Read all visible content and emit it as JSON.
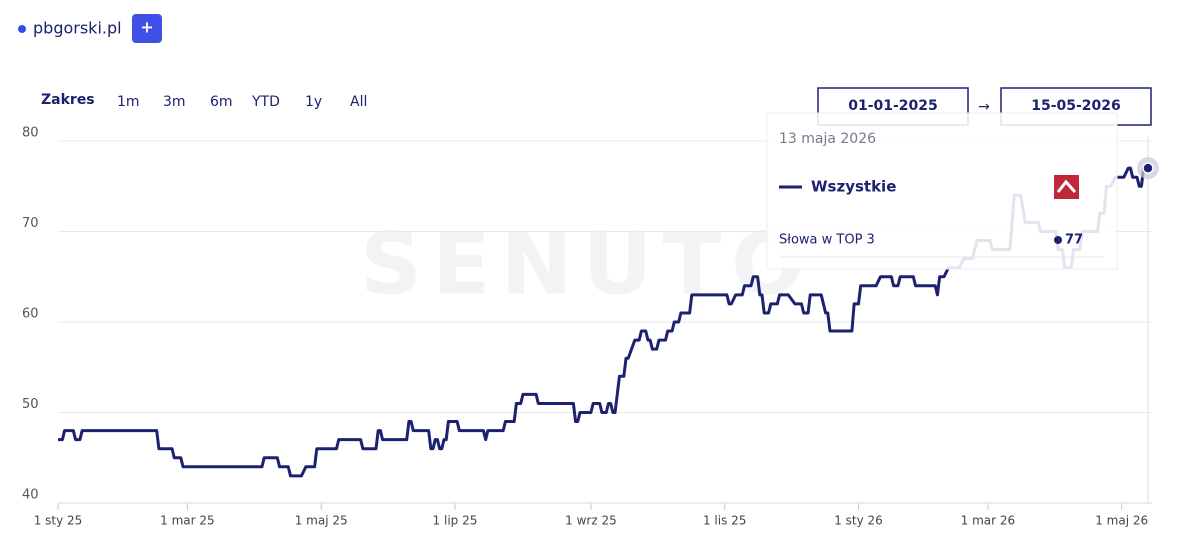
{
  "header": {
    "site": "pbgorski.pl",
    "add_button": "+"
  },
  "range": {
    "label": "Zakres",
    "options": [
      "1m",
      "3m",
      "6m",
      "YTD",
      "1y",
      "All"
    ]
  },
  "date_range": {
    "from": "01-01-2025",
    "separator": "→",
    "to": "15-05-2026"
  },
  "watermark": "SENUTO",
  "tooltip": {
    "date": "13 maja 2026",
    "group": "Wszystkie"
  },
  "chart_data": {
    "type": "line",
    "xlim": [
      "2025-01-01",
      "2026-05-13"
    ],
    "xticks": [
      {
        "value": "2025-01-01",
        "label": "1 sty 25"
      },
      {
        "value": "2025-03-01",
        "label": "1 mar 25"
      },
      {
        "value": "2025-05-01",
        "label": "1 maj 25"
      },
      {
        "value": "2025-07-01",
        "label": "1 lip 25"
      },
      {
        "value": "2025-09-01",
        "label": "1 wrz 25"
      },
      {
        "value": "2025-11-01",
        "label": "1 lis 25"
      },
      {
        "value": "2026-01-01",
        "label": "1 sty 26"
      },
      {
        "value": "2026-03-01",
        "label": "1 mar 26"
      },
      {
        "value": "2026-05-01",
        "label": "1 maj 26"
      }
    ],
    "ylim": [
      40,
      80
    ],
    "yticks": [
      40,
      50,
      60,
      70,
      80
    ],
    "grid": true,
    "x": [
      "2025-01-01",
      "2025-01-03",
      "2025-01-04",
      "2025-01-08",
      "2025-01-09",
      "2025-01-11",
      "2025-01-12",
      "2025-02-15",
      "2025-02-16",
      "2025-02-22",
      "2025-02-23",
      "2025-02-26",
      "2025-02-27",
      "2025-04-04",
      "2025-04-05",
      "2025-04-11",
      "2025-04-12",
      "2025-04-16",
      "2025-04-17",
      "2025-04-22",
      "2025-04-24",
      "2025-04-28",
      "2025-04-29",
      "2025-05-08",
      "2025-05-09",
      "2025-05-19",
      "2025-05-20",
      "2025-05-26",
      "2025-05-27",
      "2025-05-28",
      "2025-05-29",
      "2025-06-09",
      "2025-06-10",
      "2025-06-11",
      "2025-06-12",
      "2025-06-19",
      "2025-06-20",
      "2025-06-21",
      "2025-06-22",
      "2025-06-23",
      "2025-06-24",
      "2025-06-25",
      "2025-06-26",
      "2025-06-27",
      "2025-06-28",
      "2025-07-02",
      "2025-07-03",
      "2025-07-14",
      "2025-07-15",
      "2025-07-16",
      "2025-07-23",
      "2025-07-24",
      "2025-07-28",
      "2025-07-29",
      "2025-07-31",
      "2025-08-01",
      "2025-08-07",
      "2025-08-08",
      "2025-08-24",
      "2025-08-25",
      "2025-08-26",
      "2025-08-27",
      "2025-09-01",
      "2025-09-02",
      "2025-09-05",
      "2025-09-06",
      "2025-09-08",
      "2025-09-09",
      "2025-09-10",
      "2025-09-11",
      "2025-09-12",
      "2025-09-14",
      "2025-09-16",
      "2025-09-17",
      "2025-09-18",
      "2025-09-21",
      "2025-09-23",
      "2025-09-24",
      "2025-09-26",
      "2025-09-27",
      "2025-09-28",
      "2025-09-29",
      "2025-10-01",
      "2025-10-02",
      "2025-10-05",
      "2025-10-06",
      "2025-10-08",
      "2025-10-09",
      "2025-10-11",
      "2025-10-12",
      "2025-10-16",
      "2025-10-17",
      "2025-11-02",
      "2025-11-03",
      "2025-11-04",
      "2025-11-06",
      "2025-11-09",
      "2025-11-10",
      "2025-11-13",
      "2025-11-14",
      "2025-11-16",
      "2025-11-17",
      "2025-11-18",
      "2025-11-19",
      "2025-11-21",
      "2025-11-22",
      "2025-11-25",
      "2025-11-26",
      "2025-11-30",
      "2025-12-03",
      "2025-12-06",
      "2025-12-07",
      "2025-12-09",
      "2025-12-10",
      "2025-12-15",
      "2025-12-17",
      "2025-12-18",
      "2025-12-19",
      "2025-12-29",
      "2025-12-30",
      "2026-01-01",
      "2026-01-02",
      "2026-01-09",
      "2026-01-11",
      "2026-01-16",
      "2026-01-17",
      "2026-01-19",
      "2026-01-20",
      "2026-01-26",
      "2026-01-27",
      "2026-02-05",
      "2026-02-06",
      "2026-02-07",
      "2026-02-09",
      "2026-02-11",
      "2026-02-16",
      "2026-02-18",
      "2026-02-22",
      "2026-02-24",
      "2026-03-02",
      "2026-03-03",
      "2026-03-11",
      "2026-03-13",
      "2026-03-16",
      "2026-03-18",
      "2026-03-24",
      "2026-03-25",
      "2026-04-01",
      "2026-04-02",
      "2026-04-04",
      "2026-04-05",
      "2026-04-08",
      "2026-04-09",
      "2026-04-12",
      "2026-04-13",
      "2026-04-20",
      "2026-04-21",
      "2026-04-23",
      "2026-04-24",
      "2026-04-26",
      "2026-04-28",
      "2026-05-02",
      "2026-05-04",
      "2026-05-05",
      "2026-05-06",
      "2026-05-08",
      "2026-05-09",
      "2026-05-10",
      "2026-05-11",
      "2026-05-12",
      "2026-05-13"
    ],
    "series": [
      {
        "name": "Słowa w TOP 3",
        "color": "#1c2270",
        "values": [
          47,
          47,
          48,
          48,
          47,
          47,
          48,
          48,
          46,
          46,
          45,
          45,
          44,
          44,
          45,
          45,
          44,
          44,
          43,
          43,
          44,
          44,
          46,
          46,
          47,
          47,
          46,
          46,
          48,
          48,
          47,
          47,
          49,
          49,
          48,
          48,
          46,
          46,
          47,
          47,
          46,
          46,
          47,
          47,
          49,
          49,
          48,
          48,
          47,
          48,
          48,
          49,
          49,
          51,
          51,
          52,
          52,
          51,
          51,
          49,
          49,
          50,
          50,
          51,
          51,
          50,
          50,
          51,
          51,
          50,
          50,
          54,
          54,
          56,
          56,
          58,
          58,
          59,
          59,
          58,
          58,
          57,
          57,
          58,
          58,
          59,
          59,
          60,
          60,
          61,
          61,
          63,
          63,
          62,
          62,
          63,
          63,
          64,
          64,
          65,
          65,
          63,
          63,
          61,
          61,
          62,
          62,
          63,
          63,
          62,
          62,
          61,
          61,
          63,
          63,
          61,
          61,
          59,
          59,
          62,
          62,
          64,
          64,
          65,
          65,
          64,
          64,
          65,
          65,
          64,
          64,
          63,
          65,
          65,
          66,
          66,
          67,
          67,
          69,
          69,
          68,
          68,
          74,
          74,
          71,
          71,
          70,
          70,
          68,
          68,
          66,
          66,
          68,
          68,
          70,
          70,
          72,
          72,
          75,
          75,
          76,
          76,
          77,
          77,
          76,
          76,
          75,
          75,
          77,
          77,
          77
        ]
      }
    ]
  }
}
